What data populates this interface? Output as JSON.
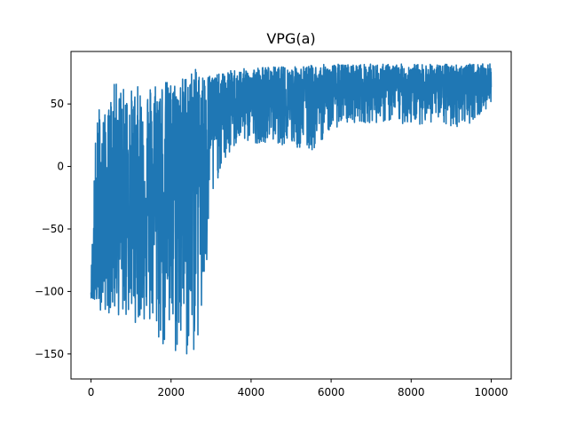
{
  "chart_data": {
    "type": "line",
    "title": "VPG(a)",
    "xlabel": "",
    "ylabel": "",
    "xlim": [
      -500,
      10500
    ],
    "ylim": [
      -170,
      92
    ],
    "grid": false,
    "legend": "none",
    "x_ticks": [
      0,
      2000,
      4000,
      6000,
      8000,
      10000
    ],
    "y_ticks": [
      -150,
      -100,
      -50,
      0,
      50
    ],
    "x_tick_labels": [
      "0",
      "2000",
      "4000",
      "6000",
      "8000",
      "10000"
    ],
    "y_tick_labels": [
      "−150",
      "−100",
      "−50",
      "0",
      "50"
    ],
    "series": [
      {
        "color": "#1f77b4",
        "x": [
          0,
          100,
          200,
          300,
          400,
          500,
          600,
          800,
          1000,
          1200,
          1400,
          1600,
          1800,
          2000,
          2200,
          2400,
          2600,
          2800,
          3000,
          3200,
          3400,
          3600,
          3800,
          4000,
          4500,
          5000,
          5500,
          6000,
          6500,
          7000,
          7500,
          8000,
          8500,
          9000,
          9500,
          10000
        ],
        "y_mean": [
          -100,
          -95,
          -70,
          -60,
          -55,
          -50,
          -45,
          -40,
          -38,
          -35,
          -30,
          -25,
          -20,
          -15,
          -5,
          10,
          20,
          15,
          35,
          40,
          45,
          50,
          52,
          52,
          53,
          54,
          56,
          58,
          60,
          62,
          63,
          64,
          64,
          64,
          64,
          65
        ],
        "y_max": [
          -90,
          20,
          52,
          45,
          40,
          60,
          68,
          65,
          62,
          65,
          65,
          72,
          70,
          68,
          70,
          75,
          78,
          75,
          75,
          74,
          76,
          78,
          78,
          80,
          80,
          80,
          81,
          82,
          82,
          82,
          82,
          82,
          82,
          82,
          82,
          82
        ],
        "y_min": [
          -105,
          -110,
          -115,
          -115,
          -118,
          -118,
          -120,
          -122,
          -125,
          -125,
          -128,
          -140,
          -150,
          -157,
          -155,
          -158,
          -150,
          -135,
          -40,
          -5,
          5,
          15,
          20,
          18,
          20,
          15,
          10,
          30,
          35,
          35,
          35,
          33,
          35,
          30,
          35,
          48
        ]
      }
    ]
  }
}
